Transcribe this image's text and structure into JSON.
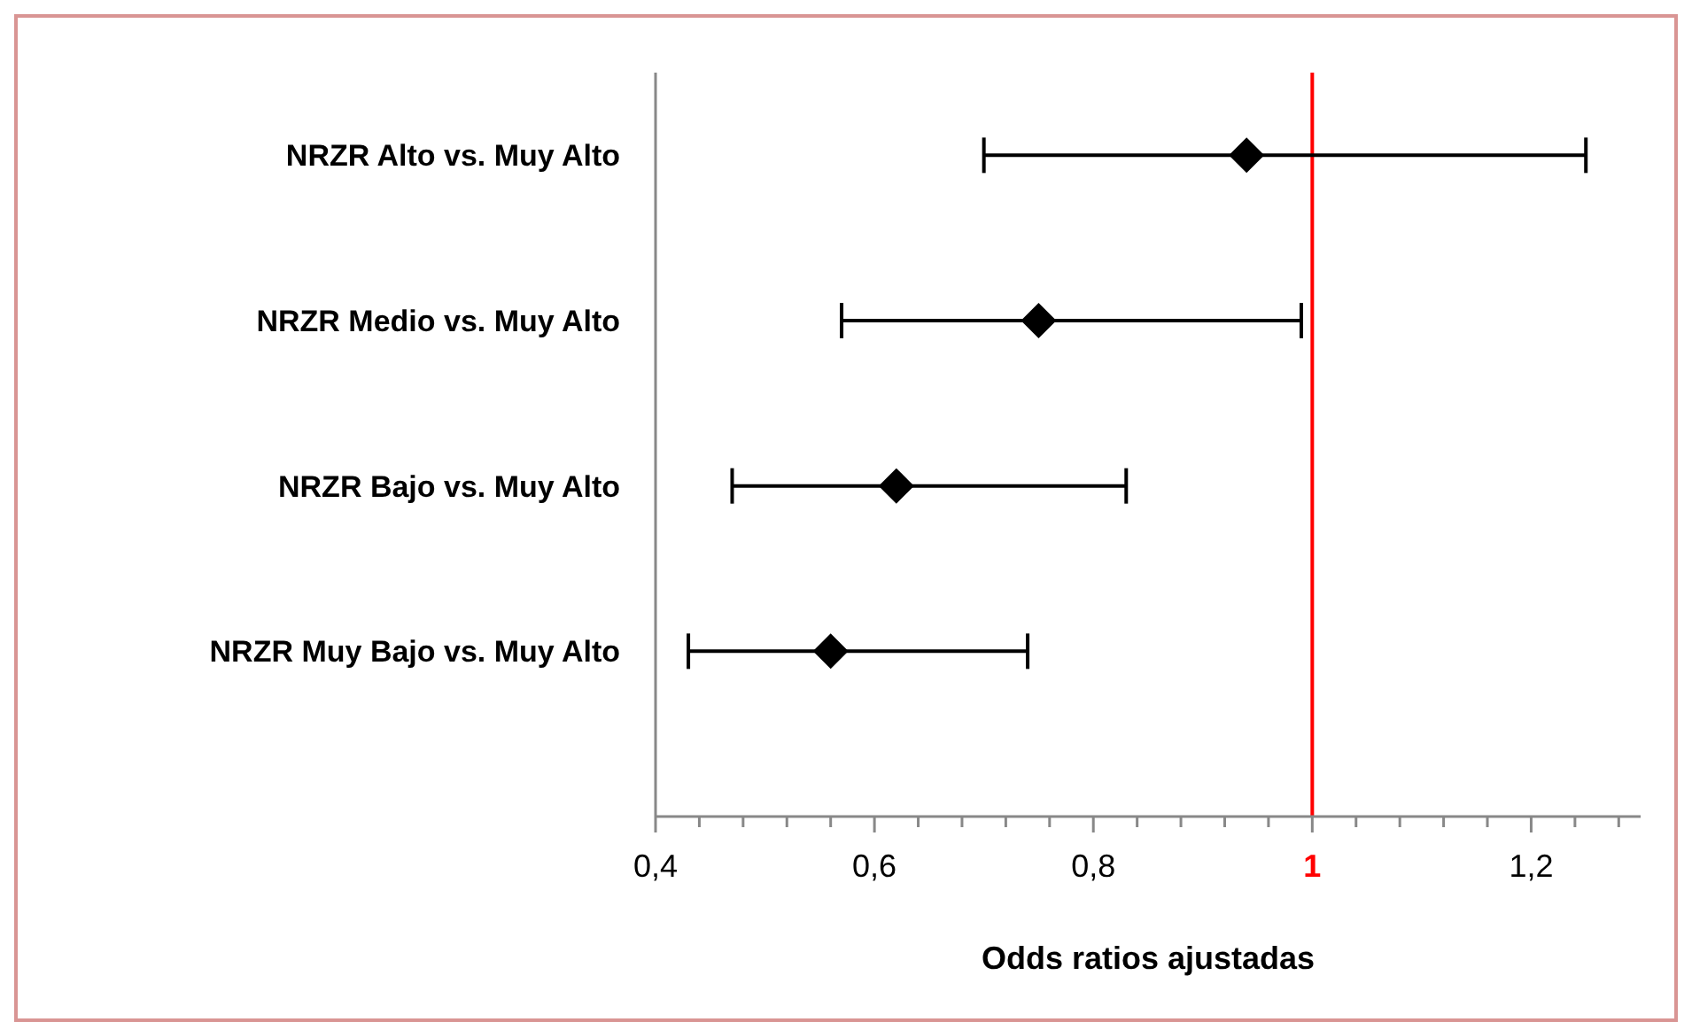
{
  "chart_data": {
    "type": "scatter",
    "orientation": "horizontal",
    "xlabel": "Odds ratios ajustadas",
    "categories": [
      "NRZR Alto vs. Muy Alto",
      "NRZR Medio vs. Muy Alto",
      "NRZR Bajo vs. Muy Alto",
      "NRZR Muy Bajo vs. Muy Alto"
    ],
    "series": [
      {
        "color": "#000000",
        "values": [
          0.94,
          0.75,
          0.62,
          0.56
        ],
        "errors": [
          [
            0.7,
            1.25
          ],
          [
            0.57,
            0.99
          ],
          [
            0.47,
            0.83
          ],
          [
            0.43,
            0.74
          ]
        ]
      }
    ],
    "marker": "diamond",
    "xlim": [
      0.4,
      1.3
    ],
    "xticks": [
      {
        "value": 0.4,
        "label": "0,4"
      },
      {
        "value": 0.44,
        "label": null
      },
      {
        "value": 0.48,
        "label": null
      },
      {
        "value": 0.52,
        "label": null
      },
      {
        "value": 0.56,
        "label": null
      },
      {
        "value": 0.6,
        "label": "0,6"
      },
      {
        "value": 0.64,
        "label": null
      },
      {
        "value": 0.68,
        "label": null
      },
      {
        "value": 0.72,
        "label": null
      },
      {
        "value": 0.76,
        "label": null
      },
      {
        "value": 0.8,
        "label": "0,8"
      },
      {
        "value": 0.84,
        "label": null
      },
      {
        "value": 0.88,
        "label": null
      },
      {
        "value": 0.92,
        "label": null
      },
      {
        "value": 0.96,
        "label": null
      },
      1,
      {
        "value": 1.04,
        "label": null
      },
      {
        "value": 1.08,
        "label": null
      },
      {
        "value": 1.12,
        "label": null
      },
      {
        "value": 1.16,
        "label": null
      },
      {
        "value": 1.2,
        "label": "1,2"
      },
      {
        "value": 1.24,
        "label": null
      },
      {
        "value": 1.28,
        "label": null
      }
    ],
    "ref_lines": [
      {
        "axis": "x",
        "value": 1,
        "color": "#ff0000"
      }
    ],
    "grid": false
  }
}
